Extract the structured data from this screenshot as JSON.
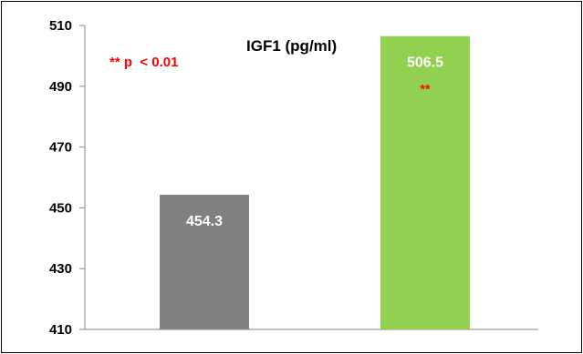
{
  "chart_data": {
    "type": "bar",
    "title": "IGF1 (pg/ml)",
    "annotation": "** p  < 0.01",
    "categories": [
      "",
      ""
    ],
    "values": [
      454.3,
      506.5
    ],
    "value_labels": [
      "454.3",
      "506.5"
    ],
    "bar_colors": [
      "#808080",
      "#92d050"
    ],
    "significance_markers": [
      "",
      "**"
    ],
    "significance_color": "#ff0000",
    "ylim": [
      410,
      510
    ],
    "yticks": [
      410,
      430,
      450,
      470,
      490,
      510
    ],
    "ytick_labels": [
      "410",
      "430",
      "450",
      "470",
      "490",
      "510"
    ],
    "xlabel": "",
    "ylabel": "",
    "grid": false,
    "legend": "none"
  }
}
